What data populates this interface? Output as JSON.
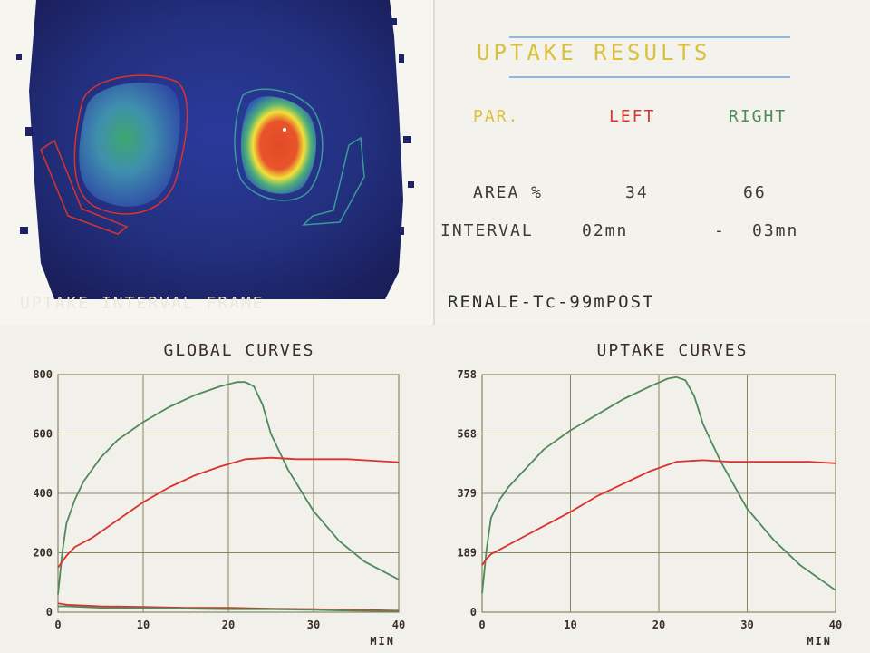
{
  "scan": {
    "caption": "UPTAKE INTERVAL FRAME"
  },
  "results": {
    "title": "UPTAKE RESULTS",
    "header": {
      "par": "PAR.",
      "left": "LEFT",
      "right": "RIGHT"
    },
    "area_label": "AREA %",
    "area_left": "34",
    "area_right": "66",
    "interval_label": "INTERVAL",
    "interval_start": "02mn",
    "interval_dash": "-",
    "interval_end": "03mn",
    "study": "RENALE-Tc-99mPOST"
  },
  "colors": {
    "left_series": "#d9332b",
    "right_series": "#4f8a5a",
    "title_yellow": "#d9c23a",
    "grid": "#8a8560"
  },
  "chart_data": [
    {
      "type": "line",
      "title": "GLOBAL CURVES",
      "xlabel": "MIN",
      "xlim": [
        0,
        40
      ],
      "ylim": [
        0,
        800
      ],
      "xticks": [
        "0",
        "10",
        "20",
        "30",
        "40"
      ],
      "yticks": [
        "0",
        "200",
        "400",
        "600",
        "800"
      ],
      "grid": true,
      "series": [
        {
          "color": "#4f8a5a",
          "x": [
            0,
            0.5,
            1,
            2,
            3,
            5,
            7,
            10,
            13,
            16,
            19,
            21,
            22,
            23,
            24,
            25,
            27,
            30,
            33,
            36,
            40
          ],
          "y": [
            60,
            200,
            300,
            380,
            440,
            520,
            580,
            640,
            690,
            730,
            760,
            775,
            775,
            760,
            700,
            600,
            480,
            340,
            240,
            170,
            110
          ]
        },
        {
          "color": "#d9332b",
          "x": [
            0,
            0.5,
            1,
            2,
            4,
            6,
            8,
            10,
            13,
            16,
            19,
            22,
            25,
            28,
            31,
            34,
            37,
            40
          ],
          "y": [
            150,
            170,
            190,
            220,
            250,
            290,
            330,
            370,
            420,
            460,
            490,
            515,
            520,
            515,
            515,
            515,
            510,
            505
          ]
        },
        {
          "color": "#d9332b",
          "x": [
            0,
            1,
            5,
            10,
            15,
            20,
            25,
            30,
            35,
            40
          ],
          "y": [
            30,
            25,
            20,
            18,
            15,
            15,
            12,
            10,
            8,
            5
          ]
        },
        {
          "color": "#4f8a5a",
          "x": [
            0,
            1,
            5,
            10,
            15,
            20,
            25,
            30,
            35,
            40
          ],
          "y": [
            20,
            20,
            15,
            15,
            12,
            10,
            10,
            8,
            5,
            3
          ]
        }
      ]
    },
    {
      "type": "line",
      "title": "UPTAKE CURVES",
      "xlabel": "MIN",
      "xlim": [
        0,
        40
      ],
      "ylim": [
        0,
        758
      ],
      "xticks": [
        "0",
        "10",
        "20",
        "30",
        "40"
      ],
      "yticks": [
        "0",
        "189",
        "379",
        "568",
        "758"
      ],
      "grid": true,
      "series": [
        {
          "color": "#4f8a5a",
          "x": [
            0,
            0.5,
            1,
            2,
            3,
            5,
            7,
            10,
            13,
            16,
            19,
            21,
            22,
            23,
            24,
            25,
            27,
            30,
            33,
            36,
            40
          ],
          "y": [
            60,
            200,
            300,
            360,
            400,
            460,
            520,
            580,
            630,
            680,
            720,
            745,
            750,
            740,
            690,
            600,
            480,
            330,
            230,
            150,
            70
          ]
        },
        {
          "color": "#d9332b",
          "x": [
            0,
            0.5,
            1,
            2,
            4,
            6,
            8,
            10,
            13,
            16,
            19,
            22,
            25,
            28,
            31,
            34,
            37,
            40
          ],
          "y": [
            150,
            170,
            185,
            200,
            230,
            260,
            290,
            320,
            370,
            410,
            450,
            480,
            485,
            480,
            480,
            480,
            480,
            475
          ]
        }
      ]
    }
  ]
}
